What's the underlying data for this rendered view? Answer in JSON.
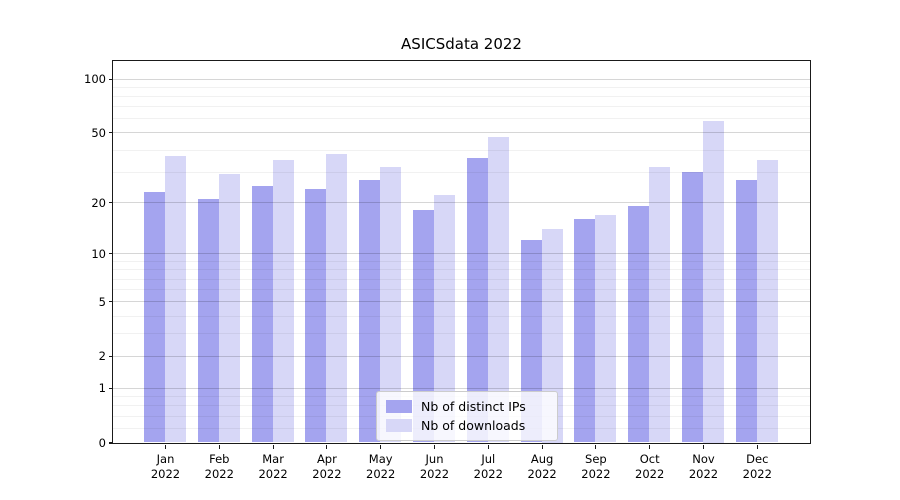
{
  "figure": {
    "background": "#ffffff"
  },
  "chart_data": {
    "type": "bar",
    "title": "ASICSdata 2022",
    "categories": [
      "Jan 2022",
      "Feb 2022",
      "Mar 2022",
      "Apr 2022",
      "May 2022",
      "Jun 2022",
      "Jul 2022",
      "Aug 2022",
      "Sep 2022",
      "Oct 2022",
      "Nov 2022",
      "Dec 2022"
    ],
    "x_tick_months": [
      "Jan",
      "Feb",
      "Mar",
      "Apr",
      "May",
      "Jun",
      "Jul",
      "Aug",
      "Sep",
      "Oct",
      "Nov",
      "Dec"
    ],
    "x_tick_year": "2022",
    "series": [
      {
        "name": "Nb of distinct IPs",
        "color": "#a4a4ef",
        "values": [
          23,
          21,
          25,
          24,
          27,
          18,
          36,
          12,
          16,
          19,
          30,
          27
        ]
      },
      {
        "name": "Nb of downloads",
        "color": "#d7d7f7",
        "values": [
          37,
          29,
          35,
          38,
          32,
          22,
          47,
          14,
          17,
          32,
          58,
          35
        ]
      }
    ],
    "xlabel": "",
    "ylabel": "",
    "yscale": "log1p",
    "ylim": [
      0,
      126
    ],
    "y_major_ticks": [
      0,
      1,
      2,
      5,
      10,
      20,
      50,
      100
    ],
    "y_minor_ticks": [
      0.2,
      0.4,
      0.6,
      0.8,
      3,
      4,
      6,
      7,
      8,
      9,
      30,
      40,
      60,
      70,
      80,
      90
    ],
    "grid": true,
    "legend_position": "lower center"
  },
  "colors": {
    "grid_major": "rgba(0,0,0,0.16)",
    "grid_minor": "rgba(0,0,0,0.055)",
    "spine": "#1a1a1a",
    "text": "#000000"
  }
}
